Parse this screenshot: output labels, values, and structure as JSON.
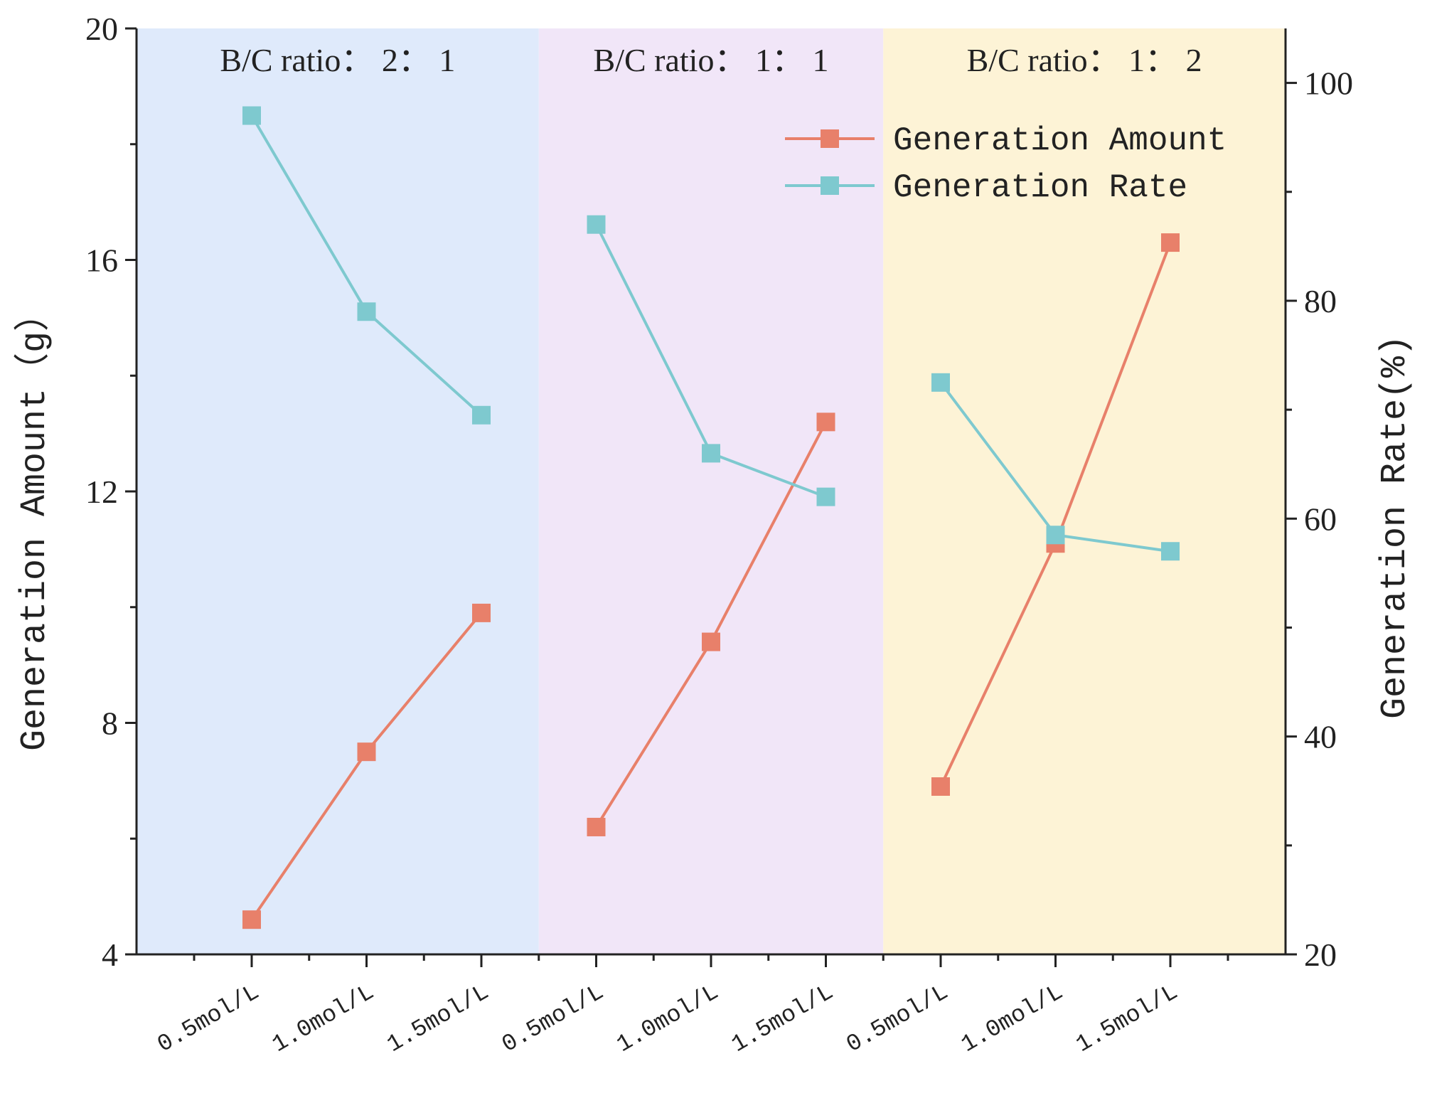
{
  "chart_data": {
    "type": "line",
    "title": "",
    "categories": [
      "0.5mol/L",
      "1.0mol/L",
      "1.5mol/L",
      "0.5mol/L",
      "1.0mol/L",
      "1.5mol/L",
      "0.5mol/L",
      "1.0mol/L",
      "1.5mol/L"
    ],
    "groups": [
      {
        "label": "B/C ratio： 2： 1",
        "color": "#dfeafb",
        "start_index": 0,
        "end_index": 2
      },
      {
        "label": "B/C ratio： 1： 1",
        "color": "#f1e6f8",
        "start_index": 3,
        "end_index": 5
      },
      {
        "label": "B/C ratio： 1： 2",
        "color": "#fdf3d6",
        "start_index": 6,
        "end_index": 8
      }
    ],
    "series": [
      {
        "name": "Generation Amount",
        "axis": "left",
        "color": "#e8806a",
        "values": [
          4.6,
          7.5,
          9.9,
          6.2,
          9.4,
          13.2,
          6.9,
          11.1,
          16.3
        ]
      },
      {
        "name": "Generation Rate",
        "axis": "right",
        "color": "#7ec9cf",
        "values": [
          97,
          79,
          69.5,
          87,
          66,
          62,
          72.5,
          58.5,
          57
        ]
      }
    ],
    "y_left": {
      "label": "Generation Amount（g）",
      "min": 4,
      "max": 20,
      "ticks": [
        "4",
        "8",
        "12",
        "16",
        "20"
      ]
    },
    "y_right": {
      "label": "Generation Rate(%)",
      "min": 20,
      "max": 105,
      "ticks": [
        "20",
        "40",
        "60",
        "80",
        "100"
      ]
    },
    "legend_position": "top-right",
    "grid": false
  }
}
